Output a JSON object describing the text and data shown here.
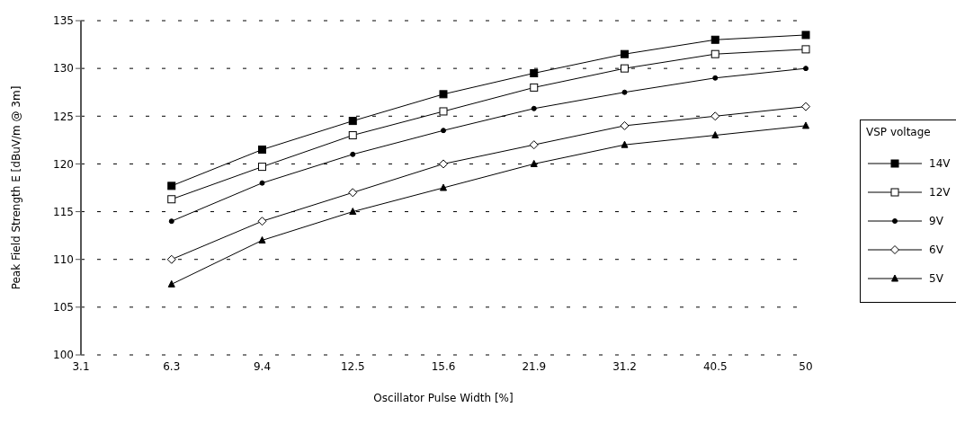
{
  "chart_data": {
    "type": "line",
    "xlabel": "Oscillator Pulse Width [%]",
    "ylabel": "Peak Field Strength E [dBuV/m @ 3m]",
    "legend_title": "VSP voltage",
    "categories": [
      "3.1",
      "6.3",
      "9.4",
      "12.5",
      "15.6",
      "21.9",
      "31.2",
      "40.5",
      "50"
    ],
    "series": [
      {
        "name": "14V",
        "color": "#000000",
        "marker": "square",
        "values": [
          null,
          117.7,
          121.5,
          124.5,
          127.3,
          129.5,
          131.5,
          133,
          133.5
        ]
      },
      {
        "name": "12V",
        "color": "#000000",
        "marker": "square-open",
        "values": [
          null,
          116.3,
          119.7,
          123,
          125.5,
          128,
          130,
          131.5,
          132
        ]
      },
      {
        "name": "9V",
        "color": "#000000",
        "marker": "circle",
        "values": [
          null,
          114,
          118,
          121,
          123.5,
          125.8,
          127.5,
          129,
          130
        ]
      },
      {
        "name": "6V",
        "color": "#000000",
        "marker": "diamond-open",
        "values": [
          null,
          110,
          114,
          117,
          120,
          122,
          124,
          125,
          126
        ]
      },
      {
        "name": "5V",
        "color": "#000000",
        "marker": "triangle",
        "values": [
          null,
          107.4,
          112,
          115,
          117.5,
          120,
          122,
          123,
          124
        ]
      }
    ],
    "ylim": [
      100,
      135
    ],
    "yticks": [
      100,
      105,
      110,
      115,
      120,
      125,
      130,
      135
    ],
    "grid": "y",
    "legend": "right",
    "line_style": "solid"
  }
}
